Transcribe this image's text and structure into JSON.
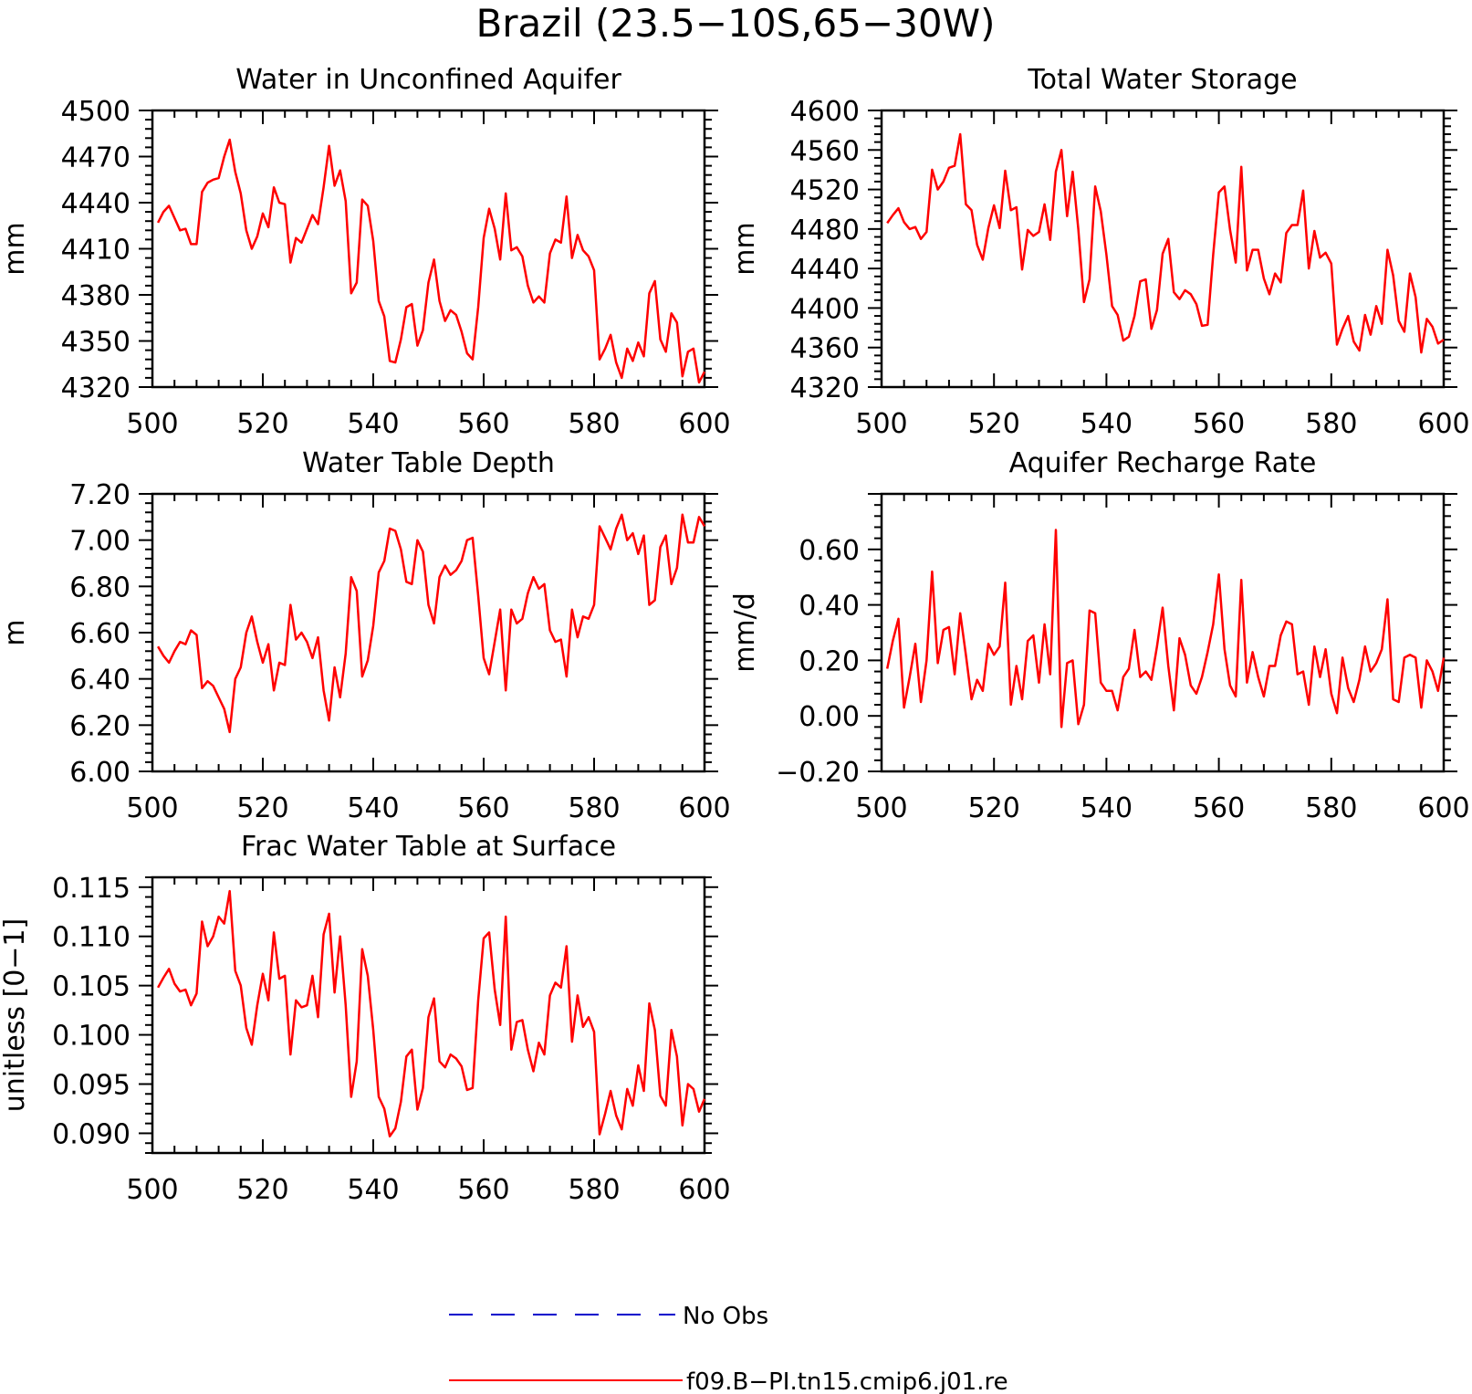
{
  "figure_title": "Brazil (23.5−10S,65−30W)",
  "colors": {
    "model": "#ff0000",
    "obs": "#0000cc",
    "axes": "#000000"
  },
  "legend": {
    "entries": [
      {
        "label": "No Obs",
        "style": "dashed",
        "color": "#0000cc"
      },
      {
        "label": "f09.B−PI.tn15.cmip6.j01.re",
        "style": "solid",
        "color": "#ff0000"
      }
    ]
  },
  "chart_data": [
    {
      "type": "line",
      "title": "Water in Unconfined Aquifer",
      "ylabel": "mm",
      "xlim": [
        500,
        600
      ],
      "ylim": [
        4320,
        4500
      ],
      "xticks": [
        "500",
        "520",
        "540",
        "560",
        "580",
        "600"
      ],
      "yticks": [
        "4320",
        "4350",
        "4380",
        "4410",
        "4440",
        "4470",
        "4500"
      ],
      "x_start": 501,
      "series": [
        {
          "values": [
            4427,
            4434,
            4438,
            4430,
            4422,
            4423,
            4413,
            4413,
            4447,
            4453,
            4455,
            4456,
            4470,
            4481,
            4460,
            4446,
            4422,
            4410,
            4418,
            4433,
            4424,
            4450,
            4440,
            4439,
            4401,
            4417,
            4414,
            4423,
            4432,
            4426,
            4450,
            4477,
            4451,
            4461,
            4441,
            4381,
            4388,
            4442,
            4438,
            4415,
            4376,
            4366,
            4337,
            4336,
            4351,
            4372,
            4374,
            4347,
            4357,
            4388,
            4403,
            4376,
            4363,
            4370,
            4367,
            4356,
            4342,
            4338,
            4372,
            4417,
            4436,
            4423,
            4403,
            4446,
            4409,
            4411,
            4405,
            4386,
            4375,
            4379,
            4375,
            4407,
            4416,
            4414,
            4444,
            4404,
            4419,
            4409,
            4405,
            4396,
            4338,
            4345,
            4354,
            4336,
            4326,
            4345,
            4337,
            4349,
            4340,
            4381,
            4389,
            4351,
            4343,
            4368,
            4362,
            4327,
            4343,
            4345,
            4323,
            4330
          ]
        }
      ]
    },
    {
      "type": "line",
      "title": "Total Water Storage",
      "ylabel": "mm",
      "xlim": [
        500,
        600
      ],
      "ylim": [
        4320,
        4600
      ],
      "xticks": [
        "500",
        "520",
        "540",
        "560",
        "580",
        "600"
      ],
      "yticks": [
        "4320",
        "4360",
        "4400",
        "4440",
        "4480",
        "4520",
        "4560",
        "4600"
      ],
      "x_start": 501,
      "series": [
        {
          "values": [
            4486,
            4494,
            4501,
            4487,
            4480,
            4482,
            4470,
            4477,
            4540,
            4520,
            4528,
            4542,
            4544,
            4576,
            4505,
            4499,
            4464,
            4449,
            4481,
            4504,
            4481,
            4539,
            4499,
            4502,
            4439,
            4479,
            4473,
            4477,
            4505,
            4469,
            4538,
            4560,
            4493,
            4538,
            4480,
            4406,
            4429,
            4523,
            4498,
            4454,
            4402,
            4393,
            4367,
            4371,
            4392,
            4427,
            4429,
            4379,
            4398,
            4455,
            4470,
            4416,
            4409,
            4418,
            4414,
            4404,
            4382,
            4383,
            4454,
            4517,
            4523,
            4479,
            4446,
            4543,
            4438,
            4459,
            4459,
            4430,
            4414,
            4435,
            4426,
            4476,
            4484,
            4484,
            4519,
            4440,
            4478,
            4451,
            4456,
            4445,
            4363,
            4379,
            4392,
            4366,
            4357,
            4393,
            4373,
            4402,
            4384,
            4459,
            4433,
            4387,
            4376,
            4435,
            4411,
            4355,
            4389,
            4381,
            4364,
            4368
          ]
        }
      ]
    },
    {
      "type": "line",
      "title": "Water Table Depth",
      "ylabel": "m",
      "xlim": [
        500,
        600
      ],
      "ylim": [
        6.0,
        7.2
      ],
      "xticks": [
        "500",
        "520",
        "540",
        "560",
        "580",
        "600"
      ],
      "yticks": [
        "6.00",
        "6.20",
        "6.40",
        "6.60",
        "6.80",
        "7.00",
        "7.20"
      ],
      "x_start": 501,
      "series": [
        {
          "values": [
            6.54,
            6.5,
            6.47,
            6.52,
            6.56,
            6.55,
            6.61,
            6.59,
            6.36,
            6.39,
            6.37,
            6.32,
            6.27,
            6.17,
            6.4,
            6.45,
            6.6,
            6.67,
            6.56,
            6.47,
            6.55,
            6.35,
            6.47,
            6.46,
            6.72,
            6.57,
            6.6,
            6.56,
            6.49,
            6.58,
            6.35,
            6.22,
            6.45,
            6.32,
            6.51,
            6.84,
            6.78,
            6.41,
            6.48,
            6.63,
            6.86,
            6.91,
            7.05,
            7.04,
            6.96,
            6.82,
            6.81,
            7.0,
            6.95,
            6.72,
            6.64,
            6.84,
            6.89,
            6.85,
            6.87,
            6.91,
            7.0,
            7.01,
            6.76,
            6.49,
            6.42,
            6.56,
            6.7,
            6.35,
            6.7,
            6.64,
            6.66,
            6.77,
            6.84,
            6.79,
            6.81,
            6.61,
            6.56,
            6.57,
            6.41,
            6.7,
            6.58,
            6.67,
            6.66,
            6.72,
            7.06,
            7.01,
            6.96,
            7.05,
            7.11,
            7.0,
            7.03,
            6.94,
            7.02,
            6.72,
            6.74,
            6.97,
            7.02,
            6.81,
            6.88,
            7.11,
            6.99,
            6.99,
            7.1,
            7.06
          ]
        }
      ]
    },
    {
      "type": "line",
      "title": "Aquifer Recharge Rate",
      "ylabel": "mm/d",
      "xlim": [
        500,
        600
      ],
      "ylim": [
        -0.2,
        0.8
      ],
      "xticks": [
        "500",
        "520",
        "540",
        "560",
        "580",
        "600"
      ],
      "yticks": [
        "−0.20",
        "0.00",
        "0.20",
        "0.40",
        "0.60"
      ],
      "x_start": 501,
      "series": [
        {
          "values": [
            0.17,
            0.27,
            0.35,
            0.03,
            0.14,
            0.26,
            0.05,
            0.2,
            0.52,
            0.19,
            0.31,
            0.32,
            0.15,
            0.37,
            0.22,
            0.06,
            0.13,
            0.09,
            0.26,
            0.22,
            0.25,
            0.48,
            0.04,
            0.18,
            0.06,
            0.27,
            0.29,
            0.12,
            0.33,
            0.15,
            0.67,
            -0.04,
            0.19,
            0.2,
            -0.03,
            0.04,
            0.38,
            0.37,
            0.12,
            0.09,
            0.09,
            0.02,
            0.14,
            0.17,
            0.31,
            0.14,
            0.16,
            0.13,
            0.25,
            0.39,
            0.18,
            0.02,
            0.28,
            0.22,
            0.11,
            0.08,
            0.14,
            0.23,
            0.33,
            0.51,
            0.24,
            0.11,
            0.07,
            0.49,
            0.12,
            0.23,
            0.14,
            0.07,
            0.18,
            0.18,
            0.29,
            0.34,
            0.33,
            0.15,
            0.16,
            0.04,
            0.25,
            0.14,
            0.24,
            0.08,
            0.01,
            0.21,
            0.1,
            0.05,
            0.13,
            0.25,
            0.16,
            0.19,
            0.24,
            0.42,
            0.06,
            0.05,
            0.21,
            0.22,
            0.21,
            0.03,
            0.2,
            0.16,
            0.09,
            0.21
          ]
        }
      ]
    },
    {
      "type": "line",
      "title": "Frac Water Table at Surface",
      "ylabel": "unitless [0−1]",
      "xlim": [
        500,
        600
      ],
      "ylim": [
        0.088,
        0.116
      ],
      "xticks": [
        "500",
        "520",
        "540",
        "560",
        "580",
        "600"
      ],
      "yticks": [
        "0.090",
        "0.095",
        "0.100",
        "0.105",
        "0.110",
        "0.115"
      ],
      "x_start": 501,
      "series": [
        {
          "values": [
            0.1048,
            0.1058,
            0.1067,
            0.1052,
            0.1044,
            0.1046,
            0.103,
            0.1042,
            0.1115,
            0.109,
            0.11,
            0.112,
            0.1113,
            0.1146,
            0.1065,
            0.105,
            0.1007,
            0.099,
            0.103,
            0.1062,
            0.1035,
            0.1104,
            0.1057,
            0.106,
            0.098,
            0.1035,
            0.1028,
            0.103,
            0.106,
            0.1018,
            0.1102,
            0.1123,
            0.1043,
            0.11,
            0.103,
            0.0937,
            0.0973,
            0.1087,
            0.106,
            0.1005,
            0.0937,
            0.0925,
            0.0897,
            0.0905,
            0.0932,
            0.0978,
            0.0985,
            0.0924,
            0.0946,
            0.1018,
            0.1037,
            0.0973,
            0.0967,
            0.098,
            0.0976,
            0.0968,
            0.0944,
            0.0946,
            0.1035,
            0.1098,
            0.1104,
            0.1046,
            0.101,
            0.112,
            0.0985,
            0.1013,
            0.1015,
            0.0985,
            0.0963,
            0.0992,
            0.098,
            0.104,
            0.1053,
            0.1048,
            0.109,
            0.0993,
            0.104,
            0.1008,
            0.1018,
            0.1003,
            0.0899,
            0.092,
            0.0943,
            0.0918,
            0.0904,
            0.0945,
            0.0928,
            0.0969,
            0.0943,
            0.1032,
            0.1005,
            0.0938,
            0.0928,
            0.1005,
            0.0978,
            0.0908,
            0.095,
            0.0945,
            0.0922,
            0.0935
          ]
        }
      ]
    }
  ]
}
